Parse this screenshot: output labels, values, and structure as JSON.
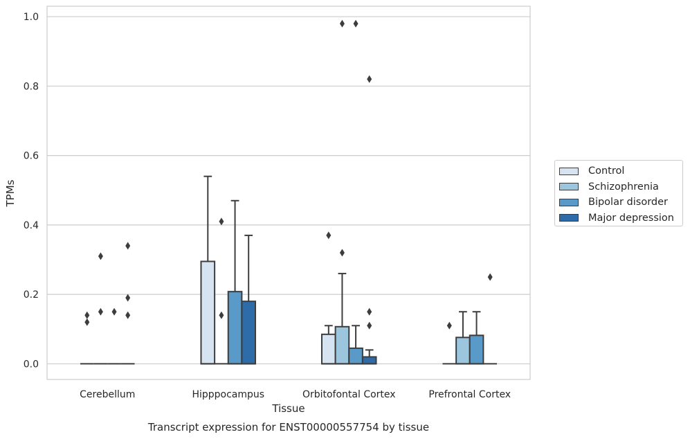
{
  "chart_data": {
    "type": "box",
    "title": "Transcript expression for ENST00000557754 by tissue",
    "xlabel": "Tissue",
    "ylabel": "TPMs",
    "ylim": [
      -0.045,
      1.03
    ],
    "yticks": [
      "0.0",
      "0.2",
      "0.4",
      "0.6",
      "0.8",
      "1.0"
    ],
    "grid": "horizontal",
    "legend_position": "right",
    "categories": [
      "Cerebellum",
      "Hipppocampus",
      "Orbitofontal Cortex",
      "Prefrontal Cortex"
    ],
    "series": [
      {
        "name": "Control",
        "color": "#d6e4f2",
        "boxes": [
          {
            "q1": 0,
            "median": 0,
            "q3": 0,
            "whisker_low": 0,
            "whisker_high": 0,
            "outliers": [
              0.12,
              0.14
            ]
          },
          {
            "q1": 0,
            "median": 0,
            "q3": 0.295,
            "whisker_low": 0,
            "whisker_high": 0.54,
            "outliers": []
          },
          {
            "q1": 0,
            "median": 0,
            "q3": 0.085,
            "whisker_low": 0,
            "whisker_high": 0.11,
            "outliers": [
              0.37
            ]
          },
          {
            "q1": 0,
            "median": 0,
            "q3": 0,
            "whisker_low": 0,
            "whisker_high": 0,
            "outliers": [
              0.11
            ]
          }
        ]
      },
      {
        "name": "Schizophrenia",
        "color": "#9cc5de",
        "boxes": [
          {
            "q1": 0,
            "median": 0,
            "q3": 0,
            "whisker_low": 0,
            "whisker_high": 0,
            "outliers": [
              0.15,
              0.31
            ]
          },
          {
            "q1": 0,
            "median": 0,
            "q3": 0,
            "whisker_low": 0,
            "whisker_high": 0,
            "outliers": [
              0.14,
              0.41
            ]
          },
          {
            "q1": 0,
            "median": 0,
            "q3": 0.107,
            "whisker_low": 0,
            "whisker_high": 0.26,
            "outliers": [
              0.32,
              0.98
            ]
          },
          {
            "q1": 0,
            "median": 0,
            "q3": 0.076,
            "whisker_low": 0,
            "whisker_high": 0.15,
            "outliers": []
          }
        ]
      },
      {
        "name": "Bipolar disorder",
        "color": "#5a9ac8",
        "boxes": [
          {
            "q1": 0,
            "median": 0,
            "q3": 0,
            "whisker_low": 0,
            "whisker_high": 0,
            "outliers": [
              0.15
            ]
          },
          {
            "q1": 0,
            "median": 0,
            "q3": 0.208,
            "whisker_low": 0,
            "whisker_high": 0.47,
            "outliers": []
          },
          {
            "q1": 0,
            "median": 0,
            "q3": 0.045,
            "whisker_low": 0,
            "whisker_high": 0.11,
            "outliers": [
              0.98
            ]
          },
          {
            "q1": 0,
            "median": 0,
            "q3": 0.082,
            "whisker_low": 0,
            "whisker_high": 0.15,
            "outliers": []
          }
        ]
      },
      {
        "name": "Major depression",
        "color": "#2d6ba9",
        "boxes": [
          {
            "q1": 0,
            "median": 0,
            "q3": 0,
            "whisker_low": 0,
            "whisker_high": 0,
            "outliers": [
              0.14,
              0.19,
              0.34
            ]
          },
          {
            "q1": 0,
            "median": 0,
            "q3": 0.18,
            "whisker_low": 0,
            "whisker_high": 0.37,
            "outliers": []
          },
          {
            "q1": 0,
            "median": 0,
            "q3": 0.02,
            "whisker_low": 0,
            "whisker_high": 0.04,
            "outliers": [
              0.11,
              0.15,
              0.82
            ]
          },
          {
            "q1": 0,
            "median": 0,
            "q3": 0,
            "whisker_low": 0,
            "whisker_high": 0,
            "outliers": [
              0.25
            ]
          }
        ]
      }
    ]
  }
}
